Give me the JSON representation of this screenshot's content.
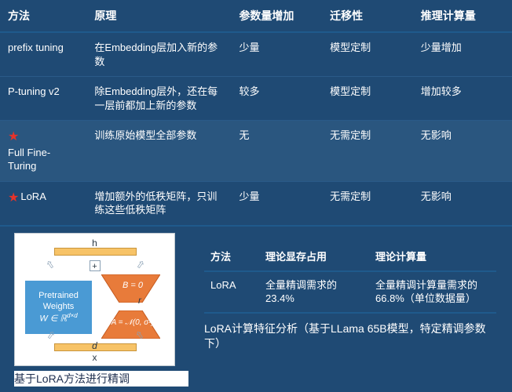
{
  "slide": {
    "background_color": "#1f4a74",
    "text_color": "#ffffff",
    "accent_border_color": "#1f5a8c",
    "row_highlight_color": "#2a567f",
    "star_color": "#e6332a"
  },
  "top_table": {
    "headers": {
      "method": "方法",
      "principle": "原理",
      "param_increase": "参数量增加",
      "transferability": "迁移性",
      "inference_cost": "推理计算量"
    },
    "rows": [
      {
        "method": "prefix tuning",
        "starred": false,
        "principle": "在Embedding层加入新的参数",
        "param_increase": "少量",
        "transferability": "模型定制",
        "inference_cost": "少量增加"
      },
      {
        "method": "P-tuning v2",
        "starred": false,
        "principle": "除Embedding层外，还在每一层前都加上新的参数",
        "param_increase": "较多",
        "transferability": "模型定制",
        "inference_cost": "增加较多"
      },
      {
        "method": "Full Fine-Turing",
        "starred": true,
        "principle": "训练原始模型全部参数",
        "param_increase": "无",
        "transferability": "无需定制",
        "inference_cost": "无影响"
      },
      {
        "method": "LoRA",
        "starred": true,
        "principle": "增加额外的低秩矩阵，只训练这些低秩矩阵",
        "param_increase": "少量",
        "transferability": "无需定制",
        "inference_cost": "无影响"
      }
    ]
  },
  "diagram": {
    "h_label": "h",
    "x_label": "x",
    "r_label": "r",
    "d_label": "d",
    "plus_label": "+",
    "pretrained_line1": "Pretrained",
    "pretrained_line2": "Weights",
    "pretrained_math": "W ∈ ℝ",
    "pretrained_math_sup": "d×d",
    "B_label": "B = 0",
    "A_label": "A = 𝒩(0, σ²)",
    "arrow_glyph": "⇧",
    "caption": "基于LoRA方法进行精调",
    "colors": {
      "border": "#bfc8d0",
      "bar_fill": "#f7c367",
      "bar_border": "#c9953c",
      "pretrained_fill": "#4a9ad4",
      "trap_fill": "#e87b3a",
      "trap_stroke": "#c45a1f",
      "arrow_color": "#8aa0b4"
    }
  },
  "mini_table": {
    "headers": {
      "method": "方法",
      "memory": "理论显存占用",
      "compute": "理论计算量"
    },
    "row": {
      "method": "LoRA",
      "memory": "全量精调需求的23.4%",
      "compute": "全量精调计算量需求的66.8%（单位数据量）"
    },
    "caption": "LoRA计算特征分析（基于LLama 65B模型，特定精调参数下）"
  }
}
